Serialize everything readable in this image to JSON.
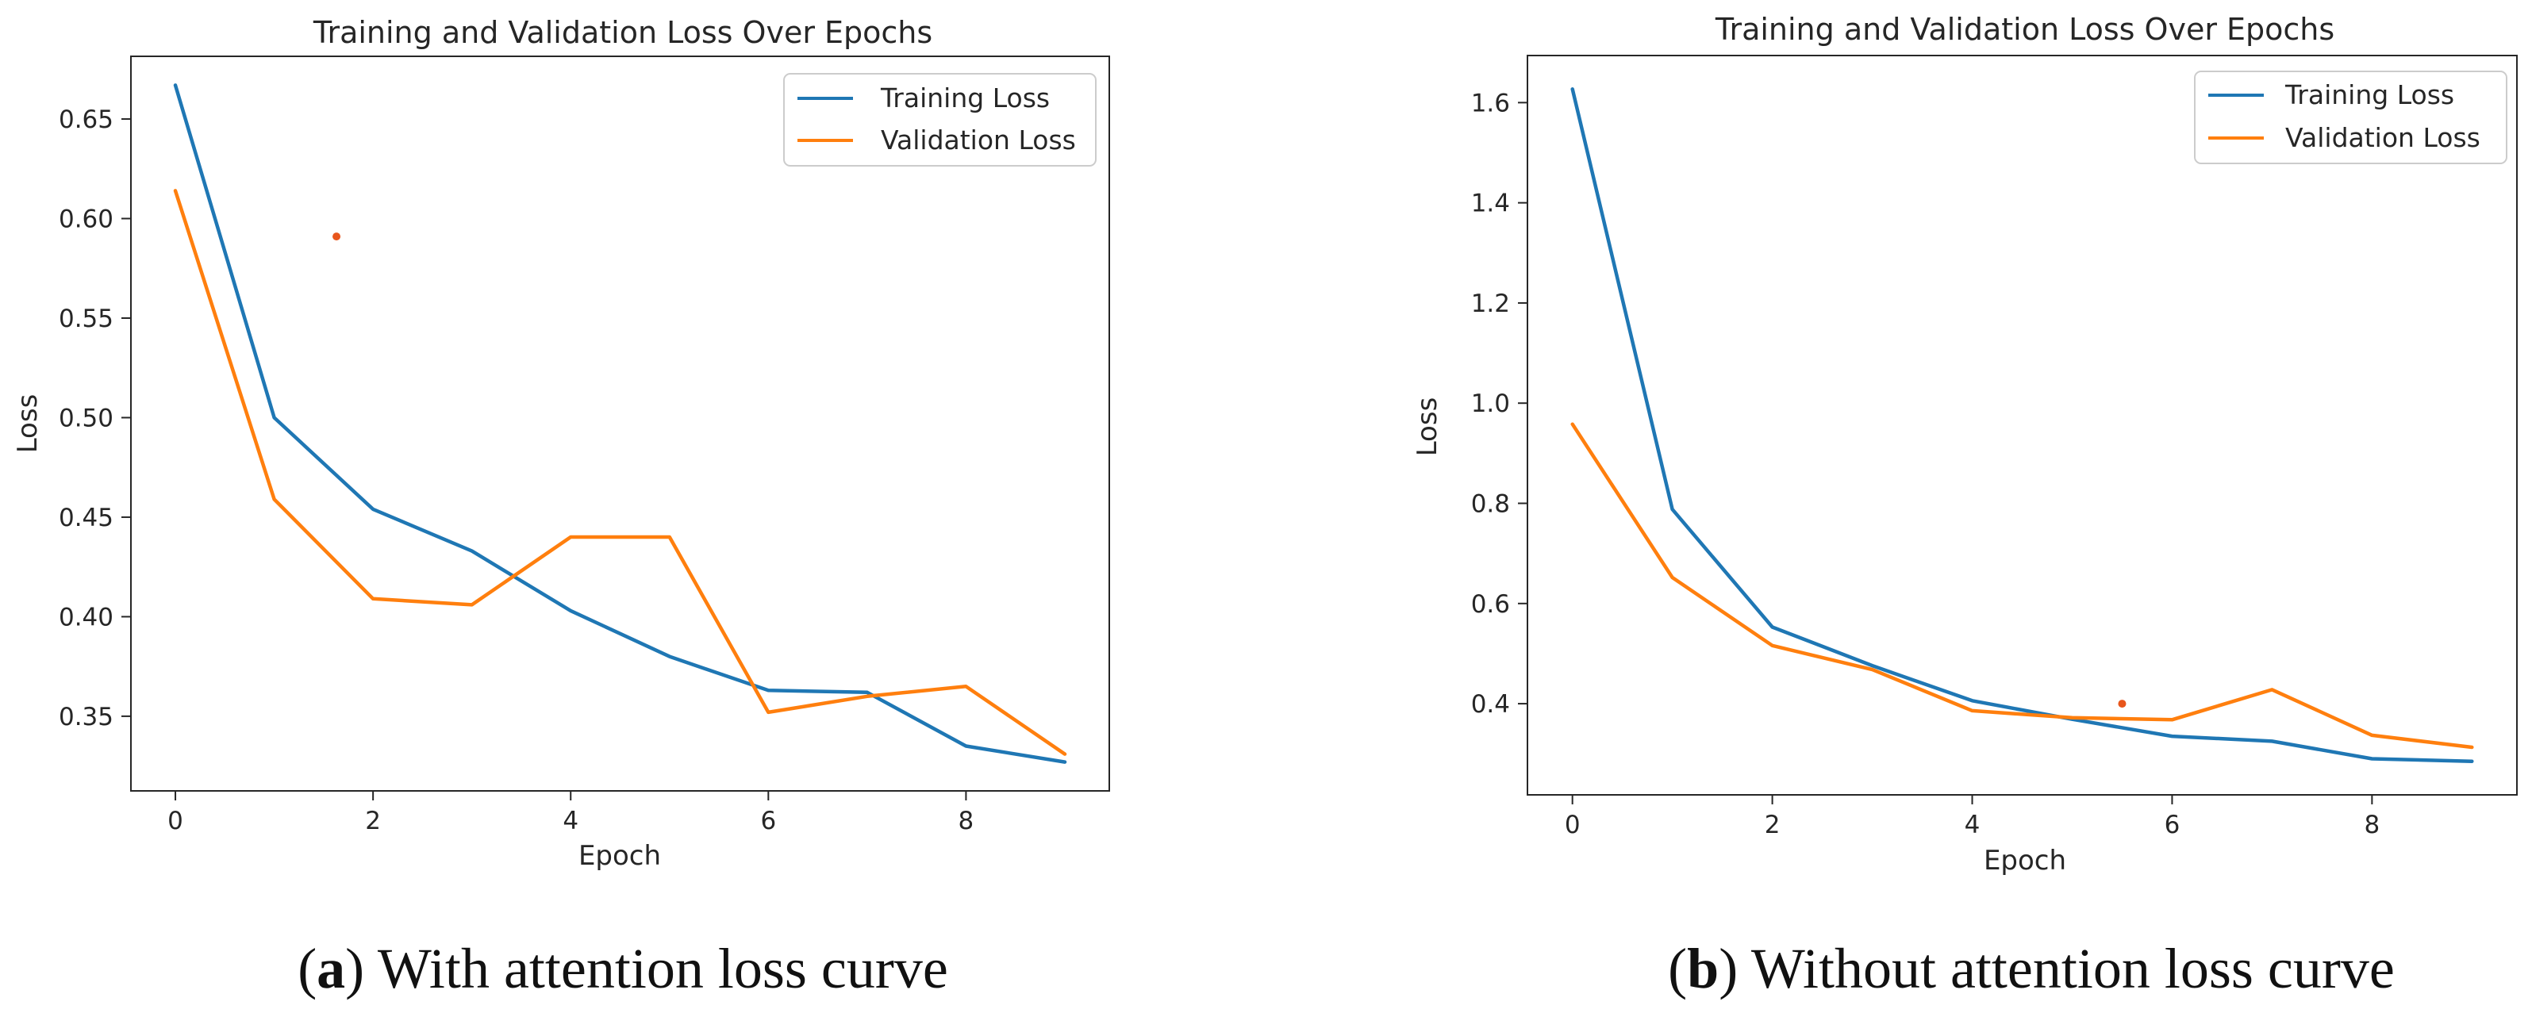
{
  "colors": {
    "training": "#1f77b4",
    "validation": "#ff7f0e",
    "stray_point": "#e8561c"
  },
  "chart_data": [
    {
      "type": "line",
      "title": "Training and Validation Loss Over Epochs",
      "xlabel": "Epoch",
      "ylabel": "Loss",
      "x": [
        0,
        1,
        2,
        3,
        4,
        5,
        6,
        7,
        8,
        9
      ],
      "series": [
        {
          "name": "Training Loss",
          "values": [
            0.667,
            0.5,
            0.454,
            0.433,
            0.403,
            0.38,
            0.363,
            0.362,
            0.335,
            0.327
          ]
        },
        {
          "name": "Validation Loss",
          "values": [
            0.614,
            0.459,
            0.409,
            0.406,
            0.44,
            0.44,
            0.352,
            0.36,
            0.365,
            0.331
          ]
        }
      ],
      "stray_point": {
        "x": 1.63,
        "y": 0.591
      },
      "xlim": [
        -0.45,
        9.45
      ],
      "ylim": [
        0.3125,
        0.6815
      ],
      "xticks": [
        0,
        2,
        4,
        6,
        8
      ],
      "yticks": [
        0.35,
        0.4,
        0.45,
        0.5,
        0.55,
        0.6,
        0.65
      ],
      "ytick_labels": [
        "0.35",
        "0.40",
        "0.45",
        "0.50",
        "0.55",
        "0.60",
        "0.65"
      ],
      "legend": "top-right",
      "caption_letter": "a",
      "caption_text": " With attention loss curve"
    },
    {
      "type": "line",
      "title": "Training and Validation Loss Over Epochs",
      "xlabel": "Epoch",
      "ylabel": "Loss",
      "x": [
        0,
        1,
        2,
        3,
        4,
        5,
        6,
        7,
        8,
        9
      ],
      "series": [
        {
          "name": "Training Loss",
          "values": [
            1.627,
            0.788,
            0.553,
            0.476,
            0.406,
            0.369,
            0.335,
            0.325,
            0.29,
            0.285
          ]
        },
        {
          "name": "Validation Loss",
          "values": [
            0.958,
            0.652,
            0.516,
            0.468,
            0.386,
            0.372,
            0.368,
            0.428,
            0.337,
            0.313
          ]
        }
      ],
      "stray_point": {
        "x": 5.5,
        "y": 0.4
      },
      "xlim": [
        -0.45,
        9.45
      ],
      "ylim": [
        0.218,
        1.694
      ],
      "xticks": [
        0,
        2,
        4,
        6,
        8
      ],
      "yticks": [
        0.4,
        0.6,
        0.8,
        1.0,
        1.2,
        1.4,
        1.6
      ],
      "ytick_labels": [
        "0.4",
        "0.6",
        "0.8",
        "1.0",
        "1.2",
        "1.4",
        "1.6"
      ],
      "legend": "top-right",
      "caption_letter": "b",
      "caption_text": " Without attention loss curve"
    }
  ]
}
